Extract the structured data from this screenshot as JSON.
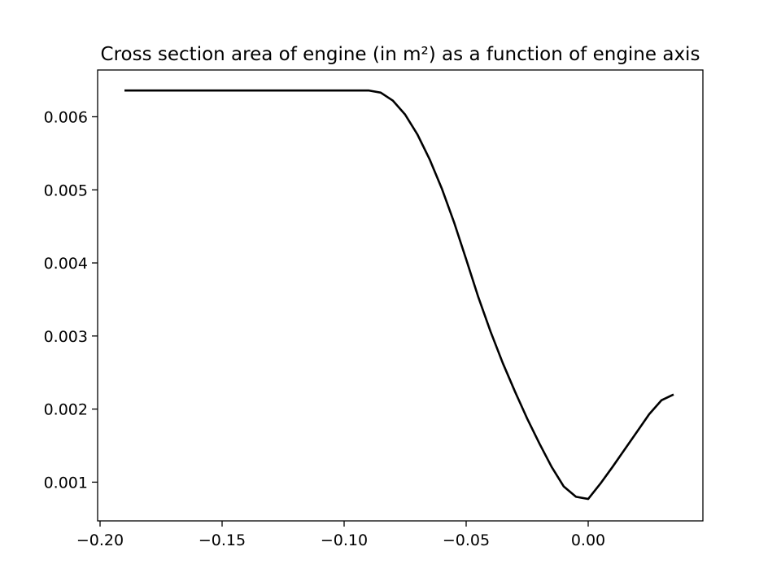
{
  "chart_data": {
    "type": "line",
    "title": "Cross section area of engine (in m²) as a function of engine axis",
    "xlabel": "",
    "ylabel": "",
    "xlim": [
      -0.201,
      0.047
    ],
    "ylim": [
      0.00047,
      0.00664
    ],
    "grid": false,
    "xticks": [
      -0.2,
      -0.15,
      -0.1,
      -0.05,
      0.0
    ],
    "xtick_labels": [
      "−0.20",
      "−0.15",
      "−0.10",
      "−0.05",
      "0.00"
    ],
    "yticks": [
      0.001,
      0.002,
      0.003,
      0.004,
      0.005,
      0.006
    ],
    "ytick_labels": [
      "0.001",
      "0.002",
      "0.003",
      "0.004",
      "0.005",
      "0.006"
    ],
    "series": [
      {
        "color": "#000000",
        "x": [
          -0.19,
          -0.15,
          -0.12,
          -0.1,
          -0.09,
          -0.085,
          -0.08,
          -0.075,
          -0.07,
          -0.065,
          -0.06,
          -0.055,
          -0.05,
          -0.045,
          -0.04,
          -0.035,
          -0.03,
          -0.025,
          -0.02,
          -0.015,
          -0.01,
          -0.005,
          0.0,
          0.005,
          0.01,
          0.015,
          0.02,
          0.025,
          0.03,
          0.035
        ],
        "y": [
          0.00636,
          0.00636,
          0.00636,
          0.00636,
          0.00636,
          0.00633,
          0.00622,
          0.00603,
          0.00576,
          0.00542,
          0.00502,
          0.00456,
          0.00405,
          0.00353,
          0.00306,
          0.00263,
          0.00224,
          0.00187,
          0.00153,
          0.00121,
          0.00094,
          0.0008,
          0.00077,
          0.00098,
          0.00121,
          0.00145,
          0.00169,
          0.00193,
          0.00212,
          0.0022
        ]
      }
    ]
  }
}
